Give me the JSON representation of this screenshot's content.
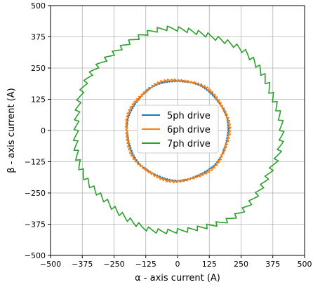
{
  "chart_data": {
    "type": "line",
    "xlabel": "α - axis current (A)",
    "ylabel": "β - axis current (A)",
    "xlim": [
      -500,
      500
    ],
    "ylim": [
      -500,
      500
    ],
    "xticks": [
      -500,
      -375,
      -250,
      -125,
      0,
      125,
      250,
      375,
      500
    ],
    "yticks": [
      -500,
      -375,
      -250,
      -125,
      0,
      125,
      250,
      375,
      500
    ],
    "xtick_labels": [
      "−500",
      "−375",
      "−250",
      "−125",
      "0",
      "125",
      "250",
      "375",
      "500"
    ],
    "ytick_labels": [
      "−500",
      "−375",
      "−250",
      "−125",
      "0",
      "125",
      "250",
      "375",
      "500"
    ],
    "grid": true,
    "legend_position": "center",
    "series": [
      {
        "name": "5ph drive",
        "color": "#1f77b4",
        "radius": 200,
        "ripple": 3,
        "teeth": 120
      },
      {
        "name": "6ph drive",
        "color": "#ff7f0e",
        "radius": 203,
        "ripple": 5,
        "teeth": 96
      },
      {
        "name": "7ph drive",
        "color": "#2ca02c",
        "radius": 405,
        "ripple": 10,
        "teeth": 64
      }
    ]
  }
}
